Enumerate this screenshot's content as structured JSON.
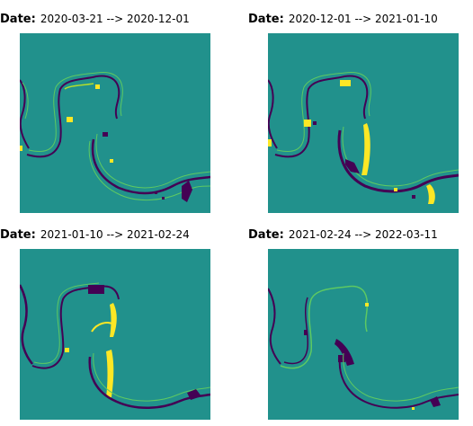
{
  "panels": [
    {
      "label": "Date:",
      "range": "2020-03-21 --> 2020-12-01"
    },
    {
      "label": "Date:",
      "range": "2020-12-01 --> 2021-01-10"
    },
    {
      "label": "Date:",
      "range": "2021-01-10 --> 2021-02-24"
    },
    {
      "label": "Date:",
      "range": "2021-02-24 --> 2022-03-11"
    }
  ],
  "colors": {
    "background": "#21918c",
    "loss": "#440154",
    "gain": "#fde725",
    "edge": "#5ec962"
  }
}
